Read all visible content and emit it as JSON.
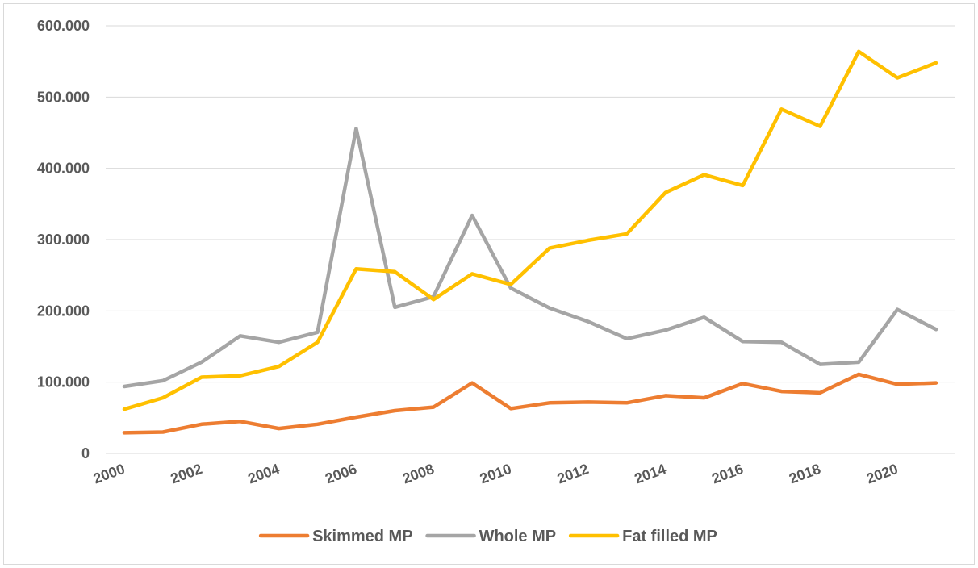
{
  "chart_data": {
    "type": "line",
    "x": [
      2000,
      2001,
      2002,
      2003,
      2004,
      2005,
      2006,
      2007,
      2008,
      2009,
      2010,
      2011,
      2012,
      2013,
      2014,
      2015,
      2016,
      2017,
      2018,
      2019,
      2020,
      2021
    ],
    "x_tick_labels": [
      "2000",
      "2002",
      "2004",
      "2006",
      "2008",
      "2010",
      "2012",
      "2014",
      "2016",
      "2018",
      "2020"
    ],
    "y_tick_labels": [
      "0",
      "100.000",
      "200.000",
      "300.000",
      "400.000",
      "500.000",
      "600.000"
    ],
    "ylim": [
      0,
      600000
    ],
    "grid": true,
    "legend_position": "bottom",
    "series": [
      {
        "name": "Skimmed MP",
        "color": "#ED7D31",
        "values": [
          29000,
          30000,
          41000,
          45000,
          35000,
          41000,
          51000,
          60000,
          65000,
          99000,
          63000,
          71000,
          72000,
          71000,
          81000,
          78000,
          98000,
          87000,
          85000,
          111000,
          97000,
          99000
        ]
      },
      {
        "name": "Whole MP",
        "color": "#A5A5A5",
        "values": [
          94000,
          102000,
          128000,
          165000,
          156000,
          170000,
          456000,
          205000,
          220000,
          334000,
          232000,
          204000,
          185000,
          161000,
          173000,
          191000,
          157000,
          156000,
          125000,
          128000,
          202000,
          174000
        ]
      },
      {
        "name": "Fat filled MP",
        "color": "#FFC000",
        "values": [
          62000,
          78000,
          107000,
          109000,
          122000,
          156000,
          259000,
          255000,
          216000,
          252000,
          237000,
          288000,
          299000,
          308000,
          366000,
          391000,
          376000,
          483000,
          459000,
          564000,
          527000,
          548000
        ]
      }
    ]
  }
}
